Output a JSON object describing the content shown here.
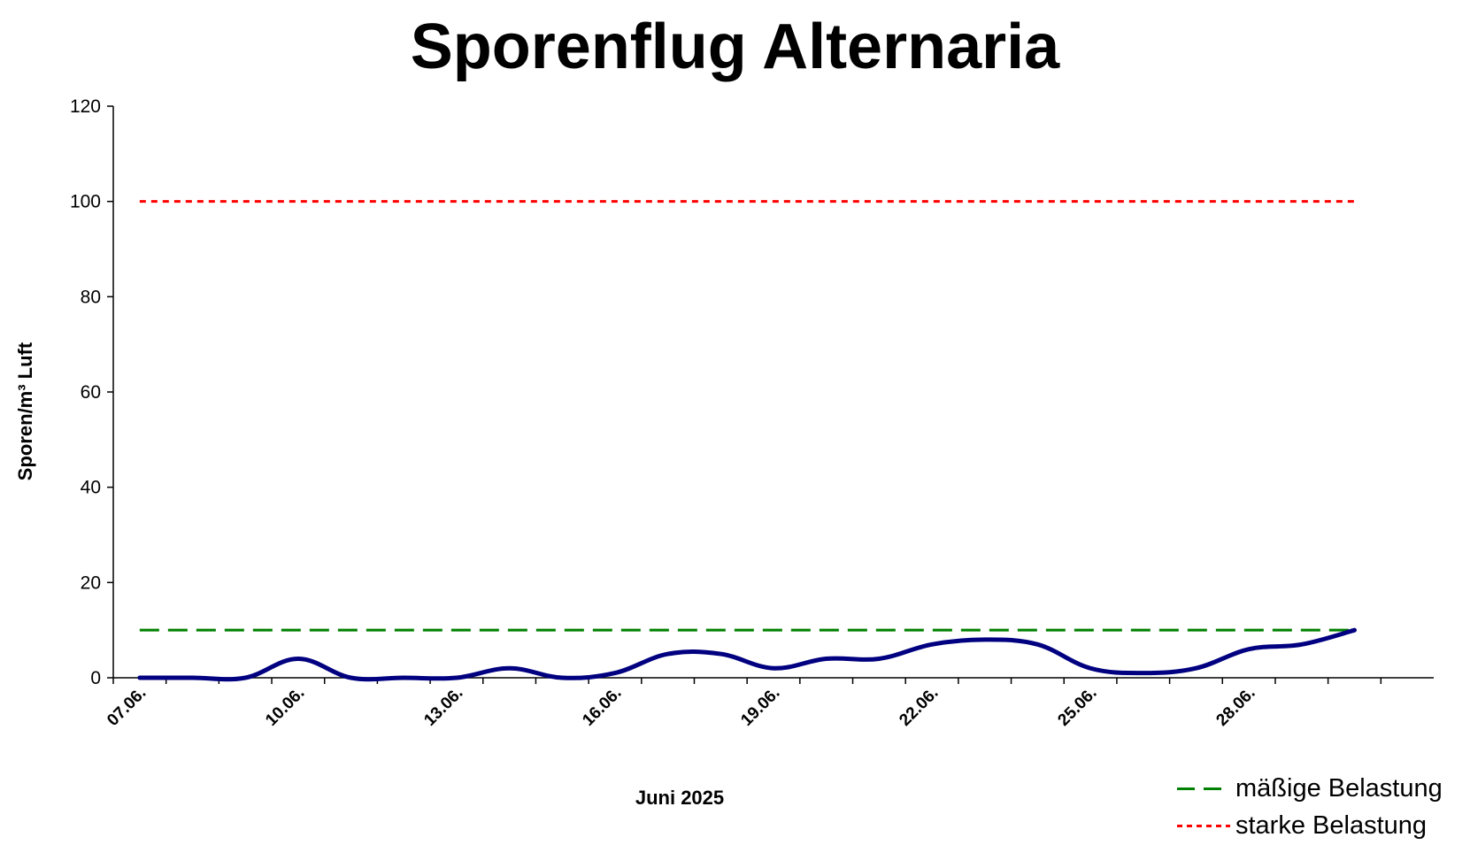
{
  "chart_data": {
    "type": "line",
    "title": "Sporenflug Alternaria",
    "xlabel": "Juni 2025",
    "ylabel": "Sporen/m³ Luft",
    "ylim": [
      0,
      120
    ],
    "yticks": [
      0,
      20,
      40,
      60,
      80,
      100,
      120
    ],
    "xlim": [
      "07.06.",
      "30.06."
    ],
    "xtick_labels": [
      "07.06.",
      "10.06.",
      "13.06.",
      "16.06.",
      "19.06.",
      "22.06.",
      "25.06.",
      "28.06."
    ],
    "x": [
      "07.06.",
      "08.06.",
      "09.06.",
      "10.06.",
      "11.06.",
      "12.06.",
      "13.06.",
      "14.06.",
      "15.06.",
      "16.06.",
      "17.06.",
      "18.06.",
      "19.06.",
      "20.06.",
      "21.06.",
      "22.06.",
      "23.06.",
      "24.06.",
      "25.06.",
      "26.06.",
      "27.06.",
      "28.06.",
      "29.06.",
      "30.06."
    ],
    "series": [
      {
        "values": [
          0,
          0,
          0,
          4,
          0,
          0,
          0,
          2,
          0,
          1,
          5,
          5,
          2,
          4,
          4,
          7,
          8,
          7,
          2,
          1,
          2,
          6,
          7,
          10
        ],
        "color": "#000080",
        "style": "solid-smooth"
      },
      {
        "name": "mäßige Belastung",
        "values": [
          10,
          10,
          10,
          10,
          10,
          10,
          10,
          10,
          10,
          10,
          10,
          10,
          10,
          10,
          10,
          10,
          10,
          10,
          10,
          10,
          10,
          10,
          10,
          10
        ],
        "color": "#008000",
        "style": "dashed"
      },
      {
        "name": "starke Belastung",
        "values": [
          100,
          100,
          100,
          100,
          100,
          100,
          100,
          100,
          100,
          100,
          100,
          100,
          100,
          100,
          100,
          100,
          100,
          100,
          100,
          100,
          100,
          100,
          100,
          100
        ],
        "color": "#ff0000",
        "style": "dotted"
      }
    ],
    "grid": false,
    "legend_position": "bottom-right"
  },
  "legend": {
    "items": [
      {
        "label": "mäßige Belastung",
        "color": "#008000"
      },
      {
        "label": "starke Belastung",
        "color": "#ff0000"
      }
    ]
  }
}
